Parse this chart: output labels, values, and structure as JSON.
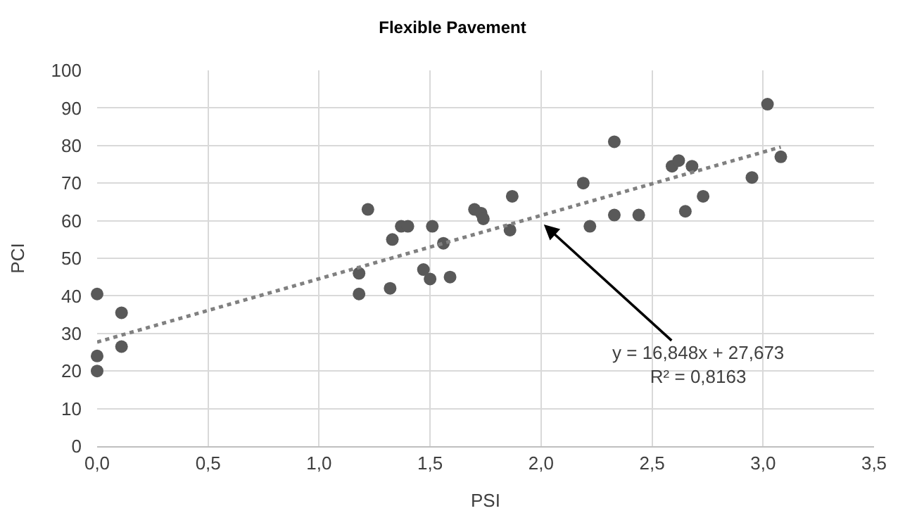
{
  "chart_data": {
    "type": "scatter",
    "title": "Flexible Pavement",
    "xlabel": "PSI",
    "ylabel": "PCI",
    "series": [
      {
        "color": "#595959",
        "marker": "circle",
        "x": [
          0,
          0,
          0,
          0.11,
          0.11,
          1.18,
          1.18,
          1.22,
          1.32,
          1.33,
          1.37,
          1.4,
          1.47,
          1.5,
          1.51,
          1.56,
          1.59,
          1.7,
          1.73,
          1.74,
          1.86,
          1.87,
          2.19,
          2.22,
          2.33,
          2.33,
          2.44,
          2.59,
          2.62,
          2.65,
          2.68,
          2.73,
          2.95,
          3.02,
          3.08
        ],
        "values": [
          40.5,
          24,
          20,
          35.5,
          26.5,
          46,
          40.5,
          63,
          42,
          55,
          58.5,
          58.5,
          47,
          44.5,
          58.5,
          54,
          45,
          63,
          62,
          60.5,
          57.5,
          66.5,
          70,
          58.5,
          61.5,
          81,
          61.5,
          74.5,
          76,
          62.5,
          74.5,
          66.5,
          71.5,
          91,
          77
        ]
      },
      {
        "type": "line",
        "color": "#808080",
        "line_style": "dotted",
        "marker": "none",
        "x": [
          0,
          3.08
        ],
        "values": [
          27.7,
          79.6
        ]
      }
    ],
    "annotations": [
      "y = 16,848x + 27,673\nR² = 0,8163"
    ],
    "xlim": [
      0,
      3.5
    ],
    "ylim": [
      0,
      100
    ],
    "xticks": [
      {
        "value": 0,
        "label": "0,0"
      },
      {
        "value": 0.5,
        "label": "0,5"
      },
      {
        "value": 1,
        "label": "1,0"
      },
      {
        "value": 1.5,
        "label": "1,5"
      },
      {
        "value": 2,
        "label": "2,0"
      },
      {
        "value": 2.5,
        "label": "2,5"
      },
      {
        "value": 3,
        "label": "3,0"
      },
      {
        "value": 3.5,
        "label": "3,5"
      }
    ],
    "yticks": [
      0,
      10,
      20,
      30,
      40,
      50,
      60,
      70,
      80,
      90,
      100
    ],
    "grid": true
  }
}
